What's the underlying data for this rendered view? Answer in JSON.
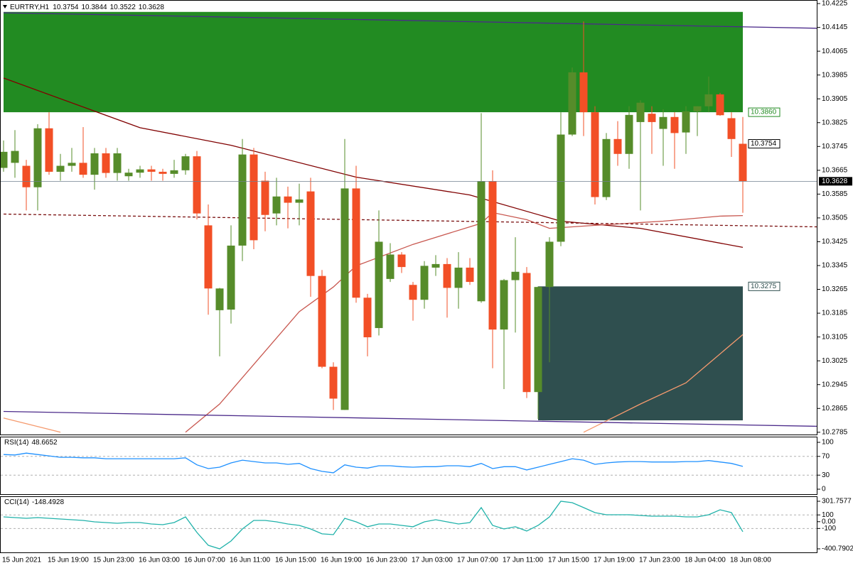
{
  "chart_data": [
    {
      "type": "candlestick",
      "title": "EURTRY,H1",
      "categories": [
        "15 Jun 2021",
        null,
        null,
        null,
        "15 Jun 19:00",
        null,
        null,
        null,
        "15 Jun 23:00",
        null,
        null,
        null,
        "16 Jun 03:00",
        null,
        null,
        null,
        "16 Jun 07:00",
        null,
        null,
        null,
        "16 Jun 11:00",
        null,
        null,
        null,
        "16 Jun 15:00",
        null,
        null,
        null,
        "16 Jun 19:00",
        null,
        null,
        null,
        "16 Jun 23:00",
        null,
        null,
        null,
        "17 Jun 03:00",
        null,
        null,
        null,
        "17 Jun 07:00",
        null,
        null,
        null,
        "17 Jun 11:00",
        null,
        null,
        null,
        "17 Jun 15:00",
        null,
        null,
        null,
        "17 Jun 19:00",
        null,
        null,
        null,
        "17 Jun 23:00",
        null,
        null,
        null,
        "18 Jun 04:00",
        null,
        null,
        null,
        "18 Jun 08:00",
        null
      ],
      "open": [
        10.3673,
        10.369,
        10.368,
        10.3608,
        10.3806,
        10.366,
        10.368,
        10.369,
        10.365,
        10.3722,
        10.3656,
        10.3645,
        10.3657,
        10.3668,
        10.366,
        10.3653,
        10.3665,
        10.3712,
        10.348,
        10.3195,
        10.3197,
        10.3412,
        10.3718,
        10.363,
        10.352,
        10.3577,
        10.3556,
        10.3594,
        10.331,
        10.3005,
        10.286,
        10.3604,
        10.3237,
        10.3135,
        10.33,
        10.3382,
        10.328,
        10.323,
        10.3338,
        10.335,
        10.327,
        10.3338,
        10.3225,
        10.3628,
        10.313,
        10.3296,
        10.332,
        10.292,
        10.3273,
        10.3425,
        10.3785,
        10.3994,
        10.386,
        10.3575,
        10.377,
        10.372,
        10.3827,
        10.3855,
        10.3804,
        10.3844,
        10.3792,
        10.3863,
        10.388,
        10.392,
        10.384,
        10.3754
      ],
      "high": [
        10.3765,
        10.38,
        10.37,
        10.382,
        10.386,
        10.372,
        10.374,
        10.381,
        10.374,
        10.374,
        10.374,
        10.367,
        10.368,
        10.368,
        10.367,
        10.37,
        10.372,
        10.373,
        10.355,
        10.327,
        10.348,
        10.377,
        10.374,
        10.366,
        10.364,
        10.361,
        10.362,
        10.364,
        10.333,
        10.302,
        10.377,
        10.368,
        10.325,
        10.353,
        10.342,
        10.339,
        10.329,
        10.336,
        10.338,
        10.337,
        10.339,
        10.337,
        10.3857,
        10.3665,
        10.33,
        10.344,
        10.334,
        10.3275,
        10.344,
        10.386,
        10.401,
        10.4165,
        10.388,
        10.379,
        10.383,
        10.388,
        10.39,
        10.388,
        10.387,
        10.386,
        10.388,
        10.388,
        10.398,
        10.3925,
        10.386,
        10.3844
      ],
      "low": [
        10.366,
        10.364,
        10.353,
        10.353,
        10.365,
        10.363,
        10.366,
        10.364,
        10.36,
        10.364,
        10.363,
        10.363,
        10.364,
        10.363,
        10.363,
        10.364,
        10.365,
        10.35,
        10.318,
        10.304,
        10.315,
        10.336,
        10.34,
        10.346,
        10.348,
        10.347,
        10.348,
        10.324,
        10.3,
        10.286,
        10.286,
        10.322,
        10.304,
        10.311,
        10.329,
        10.332,
        10.316,
        10.32,
        10.331,
        10.317,
        10.32,
        10.328,
        10.322,
        10.3,
        10.293,
        10.312,
        10.29,
        10.283,
        10.302,
        10.341,
        10.378,
        10.378,
        10.355,
        10.3565,
        10.368,
        10.367,
        10.353,
        10.372,
        10.368,
        10.367,
        10.372,
        10.378,
        10.386,
        10.3848,
        10.371,
        10.3522
      ],
      "close": [
        10.3727,
        10.373,
        10.3608,
        10.3806,
        10.366,
        10.368,
        10.369,
        10.365,
        10.3722,
        10.3656,
        10.3722,
        10.3657,
        10.3668,
        10.366,
        10.3653,
        10.3665,
        10.3712,
        10.352,
        10.3268,
        10.3268,
        10.3412,
        10.3718,
        10.343,
        10.3515,
        10.3577,
        10.3556,
        10.3567,
        10.331,
        10.3005,
        10.2898,
        10.3604,
        10.3237,
        10.3104,
        10.3425,
        10.3382,
        10.334,
        10.323,
        10.3344,
        10.335,
        10.327,
        10.3338,
        10.329,
        10.3628,
        10.313,
        10.3296,
        10.3324,
        10.292,
        10.3273,
        10.3425,
        10.3785,
        10.3994,
        10.386,
        10.3575,
        10.377,
        10.372,
        10.3851,
        10.3892,
        10.3827,
        10.3844,
        10.379,
        10.3863,
        10.388,
        10.392,
        10.385,
        10.377,
        10.3628
      ],
      "up_color": "#568c2a",
      "down_color": "#f24f26",
      "xlim": [
        -0.3125,
        71.5625
      ],
      "ylim": [
        10.2775,
        10.4237
      ],
      "yticks": [
        10.2785,
        10.2865,
        10.2945,
        10.3025,
        10.3105,
        10.3185,
        10.3265,
        10.3345,
        10.3425,
        10.3505,
        10.3585,
        10.3665,
        10.3745,
        10.3825,
        10.3905,
        10.3985,
        10.4065,
        10.4145,
        10.4225
      ],
      "zones": [
        {
          "low": {
            "value": 10.386,
            "label": "10.3860"
          },
          "high": 10.4197,
          "start": 0,
          "end": 65,
          "color": "#228b22"
        },
        {
          "low": 10.2825,
          "high": {
            "value": 10.3275,
            "label": "10.3275"
          },
          "start": 47,
          "end": 65,
          "color": "#2f4f4f"
        }
      ],
      "trendlines": [
        {
          "color": "#4b2a8a",
          "style": "solid",
          "x": [
            0,
            71.5
          ],
          "values": [
            10.4194,
            10.4142
          ]
        },
        {
          "color": "#4b2a8a",
          "style": "solid",
          "x": [
            0,
            71.5
          ],
          "values": [
            10.2855,
            10.2805
          ]
        },
        {
          "color": "#7a1010",
          "style": "dash",
          "x": [
            0,
            71.5
          ],
          "values": [
            10.3518,
            10.3475
          ]
        }
      ],
      "moving_averages": [
        {
          "color": "#800000",
          "x": [
            0,
            12,
            20,
            31,
            41,
            49,
            56,
            65
          ],
          "values": [
            10.3975,
            10.3808,
            10.3749,
            10.3642,
            10.3582,
            10.3494,
            10.347,
            10.3406
          ]
        },
        {
          "color": "#c8574f",
          "x": [
            16,
            19,
            26,
            29,
            31,
            36,
            42,
            43,
            46,
            48,
            52,
            58,
            63,
            65
          ],
          "values": [
            10.2785,
            10.288,
            10.319,
            10.3273,
            10.3344,
            10.3416,
            10.3487,
            10.3523,
            10.3499,
            10.347,
            10.348,
            10.3494,
            10.3511,
            10.3513
          ]
        },
        {
          "color": "#f59a6e",
          "x": [
            0,
            5,
            6,
            51,
            56,
            60,
            65
          ],
          "values": [
            10.2833,
            10.2785,
            null,
            10.2785,
            10.288,
            10.2951,
            10.3113
          ]
        }
      ]
    },
    {
      "type": "line",
      "title": "RSI(14)",
      "color": "#1e90ff",
      "values": [
        74,
        73,
        77,
        74,
        71,
        68,
        68,
        67,
        67,
        65,
        65,
        65,
        65,
        65,
        65,
        65,
        67,
        52,
        44,
        47,
        56,
        62,
        59,
        56,
        56,
        53,
        55,
        44,
        38,
        35,
        52,
        47,
        45,
        50,
        50,
        48,
        47,
        48,
        48,
        50,
        50,
        48,
        55,
        44,
        48,
        48,
        41,
        47,
        53,
        59,
        65,
        62,
        53,
        56,
        58,
        59,
        59,
        58,
        58,
        58,
        59,
        59,
        61,
        58,
        55,
        48.6652
      ],
      "ylim": [
        -12.1,
        112.1
      ],
      "yticks": [
        0,
        30,
        70,
        100
      ],
      "levels": [
        30,
        70
      ]
    },
    {
      "type": "line",
      "title": "CCI(14)",
      "color": "#20b2aa",
      "values": [
        71,
        61,
        50,
        61,
        50,
        40,
        29,
        19,
        -2,
        -13,
        -23,
        -13,
        -13,
        -34,
        -44,
        -13,
        71,
        -159,
        -348,
        -400.7902,
        -285,
        -107,
        19,
        19,
        -2,
        -34,
        -55,
        -107,
        -180,
        -191,
        50,
        -2,
        -75,
        -34,
        -34,
        -55,
        -75,
        -2,
        29,
        -2,
        -34,
        -13,
        208,
        -55,
        -107,
        -75,
        -138,
        -55,
        71,
        301.7577,
        281,
        208,
        134,
        103,
        103,
        103,
        92,
        82,
        82,
        82,
        71,
        71,
        103,
        176,
        134,
        -148.4928
      ],
      "ylim": [
        -463.7,
        375.2
      ],
      "yticks": [
        -400.7902,
        -100,
        {
          "value": 0,
          "label": "0.00"
        },
        100,
        301.7577
      ],
      "levels": [
        -100,
        100
      ]
    }
  ]
}
